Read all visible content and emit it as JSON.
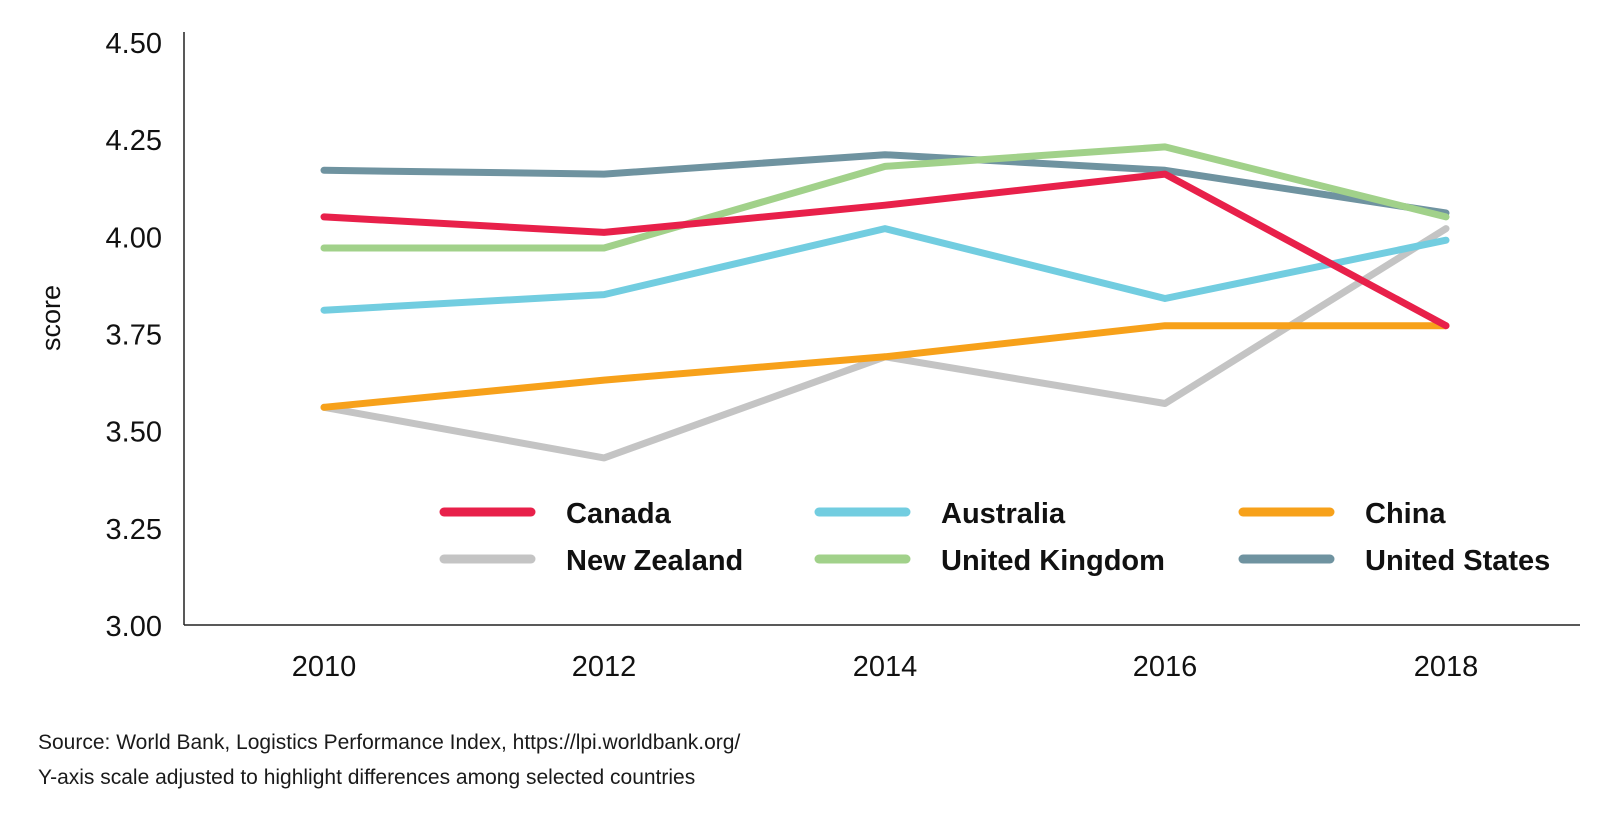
{
  "chart_data": {
    "type": "line",
    "ylabel": "score",
    "xlabel": "",
    "x": [
      2010,
      2012,
      2014,
      2016,
      2018
    ],
    "xticks": [
      "2010",
      "2012",
      "2014",
      "2016",
      "2018"
    ],
    "ylim": [
      3.0,
      4.5
    ],
    "yticks": [
      "3.00",
      "3.25",
      "3.50",
      "3.75",
      "4.00",
      "4.25",
      "4.50"
    ],
    "grid": false,
    "legend_position": "lower-right inside",
    "series": [
      {
        "name": "Canada",
        "color": "#e8204a",
        "values": [
          4.05,
          4.01,
          4.08,
          4.16,
          3.77
        ]
      },
      {
        "name": "Australia",
        "color": "#72cde0",
        "values": [
          3.81,
          3.85,
          4.02,
          3.84,
          3.99
        ]
      },
      {
        "name": "China",
        "color": "#f7a11a",
        "values": [
          3.56,
          3.63,
          3.69,
          3.77,
          3.77
        ]
      },
      {
        "name": "New Zealand",
        "color": "#c4c4c4",
        "values": [
          3.56,
          3.43,
          3.69,
          3.57,
          4.02
        ]
      },
      {
        "name": "United Kingdom",
        "color": "#a1d18a",
        "values": [
          3.97,
          3.97,
          4.18,
          4.23,
          4.05
        ]
      },
      {
        "name": "United States",
        "color": "#6f93a0",
        "values": [
          4.17,
          4.16,
          4.21,
          4.17,
          4.06
        ]
      }
    ]
  },
  "notes": {
    "source": "Source: World Bank, Logistics Performance Index, https://lpi.worldbank.org/",
    "scale_note": "Y-axis scale adjusted to highlight differences among selected countries"
  }
}
